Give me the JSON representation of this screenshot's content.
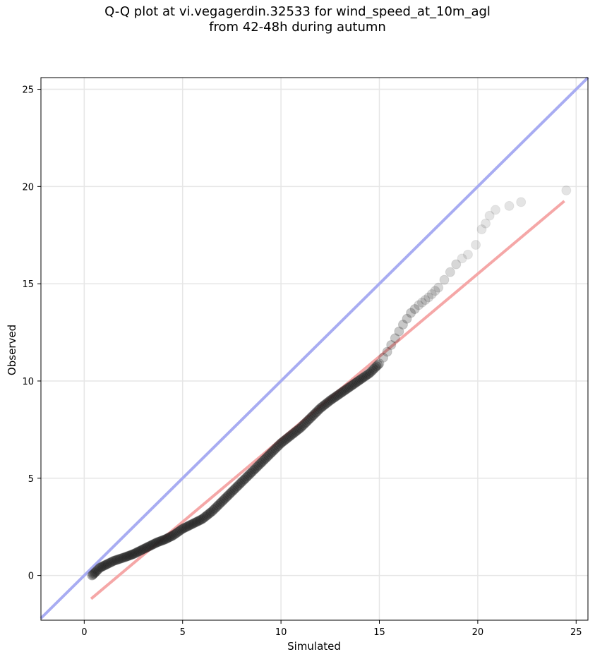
{
  "chart_data": {
    "type": "scatter",
    "title_line1": "Q-Q plot at vi.vegagerdin.32533 for wind_speed_at_10m_agl",
    "title_line2": "from 42-48h during autumn",
    "xlabel": "Simulated",
    "ylabel": "Observed",
    "xlim": [
      -2.2,
      25.6
    ],
    "ylim": [
      -2.3,
      25.6
    ],
    "xticks": [
      0,
      5,
      10,
      15,
      20,
      25
    ],
    "yticks": [
      0,
      5,
      10,
      15,
      20,
      25
    ],
    "grid": true,
    "identity_line": {
      "color": "#a8acf2",
      "from": [
        -2.2,
        -2.2
      ],
      "to": [
        25.6,
        25.6
      ]
    },
    "fit_line": {
      "color": "#f5a7a7",
      "from": [
        0.35,
        -1.2
      ],
      "to": [
        24.4,
        19.25
      ]
    },
    "quantile_points": {
      "color": "#222222",
      "x": [
        0.4,
        0.5,
        0.6,
        0.8,
        1.0,
        1.2,
        1.5,
        1.8,
        2.1,
        2.5,
        2.9,
        3.3,
        3.7,
        4.1,
        4.5,
        5.0,
        5.5,
        6.0,
        6.5,
        7.0,
        7.5,
        8.0,
        8.5,
        9.0,
        9.5,
        10.0,
        10.5,
        11.0,
        11.5,
        12.0,
        12.5,
        13.0,
        13.5,
        14.0,
        14.5,
        15.0,
        15.4,
        15.8,
        16.2,
        16.6,
        17.0,
        17.5,
        18.0,
        18.3,
        18.6,
        18.9,
        19.2,
        19.5,
        19.9,
        20.2,
        20.4,
        20.6,
        20.9,
        21.6,
        22.2,
        24.5
      ],
      "y": [
        0.0,
        0.1,
        0.2,
        0.4,
        0.5,
        0.6,
        0.75,
        0.85,
        0.95,
        1.1,
        1.3,
        1.5,
        1.7,
        1.85,
        2.05,
        2.4,
        2.65,
        2.9,
        3.3,
        3.8,
        4.3,
        4.8,
        5.3,
        5.8,
        6.3,
        6.8,
        7.2,
        7.6,
        8.1,
        8.6,
        9.0,
        9.35,
        9.7,
        10.05,
        10.4,
        10.9,
        11.5,
        12.2,
        12.9,
        13.5,
        13.9,
        14.3,
        14.8,
        15.2,
        15.6,
        16.0,
        16.3,
        16.5,
        17.0,
        17.8,
        18.1,
        18.5,
        18.8,
        19.0,
        19.2,
        19.8
      ]
    }
  }
}
